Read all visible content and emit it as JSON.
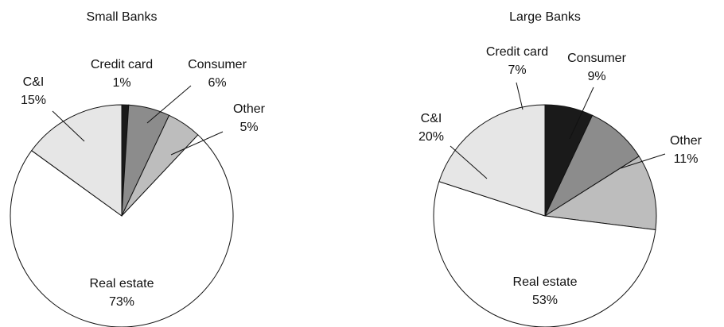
{
  "chart_data": [
    {
      "type": "pie",
      "title": "Small Banks",
      "categories": [
        "Credit card",
        "Consumer",
        "Other",
        "Real estate",
        "C&I"
      ],
      "values": [
        1,
        6,
        5,
        73,
        15
      ],
      "value_labels": [
        "1%",
        "6%",
        "5%",
        "73%",
        "15%"
      ],
      "colors": [
        "#1a1a1a",
        "#8c8c8c",
        "#bdbdbd",
        "#ffffff",
        "#e6e6e6"
      ]
    },
    {
      "type": "pie",
      "title": "Large Banks",
      "categories": [
        "Credit card",
        "Consumer",
        "Other",
        "Real estate",
        "C&I"
      ],
      "values": [
        7,
        9,
        11,
        53,
        20
      ],
      "value_labels": [
        "7%",
        "9%",
        "11%",
        "53%",
        "20%"
      ],
      "colors": [
        "#1a1a1a",
        "#8c8c8c",
        "#bdbdbd",
        "#ffffff",
        "#e6e6e6"
      ]
    }
  ]
}
